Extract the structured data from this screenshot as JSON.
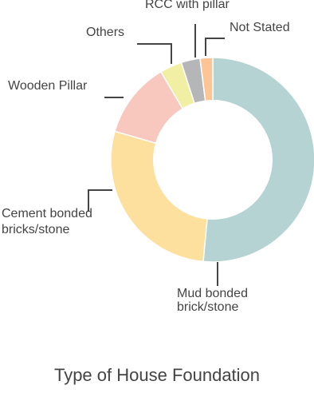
{
  "chart_data": {
    "type": "pie",
    "title": "Type of House Foundation",
    "slices": [
      {
        "label": "Mud bonded brick/stone",
        "label_lines": [
          "Mud bonded",
          "brick/stone"
        ],
        "value": 51.5,
        "color": "#b5d3d3"
      },
      {
        "label": "Cement bonded bricks/stone",
        "label_lines": [
          "Cement bonded",
          "bricks/stone"
        ],
        "value": 28.0,
        "color": "#fddf9e"
      },
      {
        "label": "Wooden Pillar",
        "label_lines": [
          "Wooden Pillar"
        ],
        "value": 12.0,
        "color": "#f8c7be"
      },
      {
        "label": "Others",
        "label_lines": [
          "Others"
        ],
        "value": 3.5,
        "color": "#f1efa3"
      },
      {
        "label": "RCC with pillar",
        "label_lines": [
          "RCC with pillar"
        ],
        "value": 3.0,
        "color": "#b4b6b8"
      },
      {
        "label": "Not Stated",
        "label_lines": [
          "Not Stated"
        ],
        "value": 2.0,
        "color": "#fdc495"
      }
    ],
    "legend": "none",
    "inner_radius_ratio": 0.58
  }
}
